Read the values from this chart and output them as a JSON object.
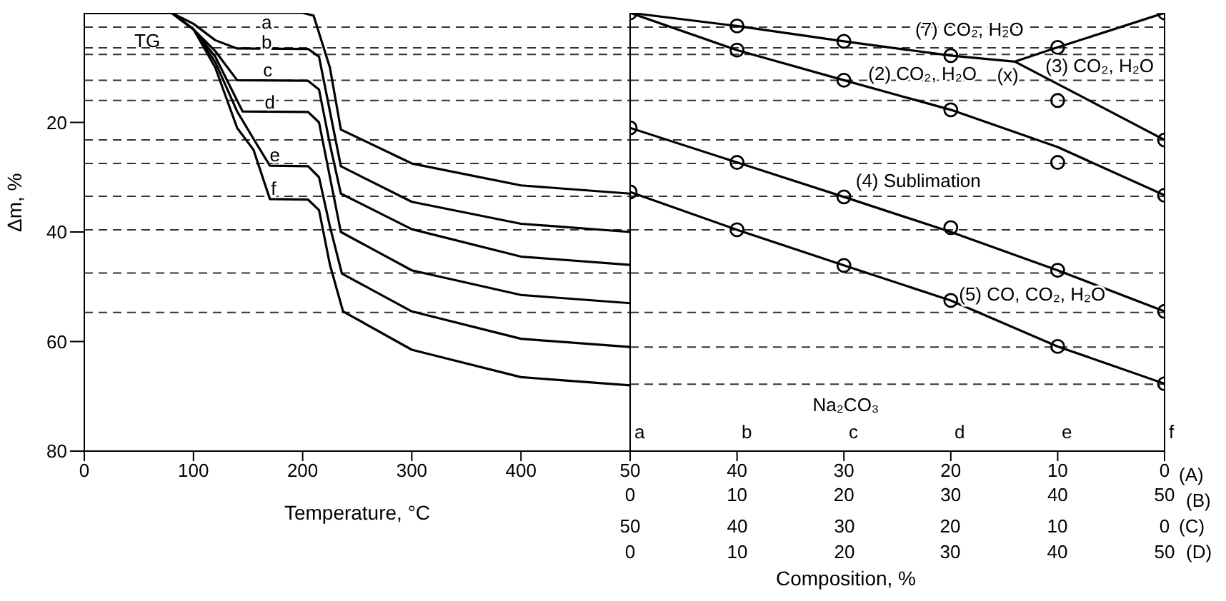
{
  "chart_data": [
    {
      "type": "line",
      "title": "TG",
      "xlabel": "Temperature, °C",
      "ylabel": "Δm, %",
      "xlim": [
        0,
        500
      ],
      "xticks": [
        0,
        100,
        200,
        300,
        400
      ],
      "ylim": [
        80,
        0
      ],
      "yticks": [
        20,
        40,
        60,
        80
      ],
      "grid": false,
      "marker": "none",
      "line_style": "solid",
      "series": [
        {
          "color": "#000000",
          "x": [
            0,
            80,
            200,
            210,
            225,
            235,
            300,
            400,
            500
          ],
          "values": [
            0,
            0,
            0,
            0.5,
            10,
            21.3,
            27.5,
            31.5,
            33
          ]
        },
        {
          "color": "#000000",
          "x": [
            0,
            80,
            100,
            120,
            140,
            205,
            215,
            225,
            235,
            300,
            400,
            500
          ],
          "values": [
            0,
            0,
            2,
            5,
            6.5,
            6.6,
            8,
            18,
            28,
            34.5,
            38.5,
            40
          ]
        },
        {
          "color": "#000000",
          "x": [
            0,
            80,
            100,
            120,
            140,
            205,
            215,
            225,
            235,
            300,
            400,
            500
          ],
          "values": [
            0,
            0,
            3,
            7,
            12.3,
            12.4,
            14,
            24,
            33,
            39.5,
            44.5,
            46
          ]
        },
        {
          "color": "#000000",
          "x": [
            0,
            80,
            100,
            120,
            135,
            145,
            205,
            215,
            225,
            235,
            300,
            400,
            500
          ],
          "values": [
            0,
            0,
            3,
            8,
            14,
            18,
            18.1,
            20,
            30,
            40,
            47,
            51.5,
            53
          ]
        },
        {
          "color": "#000000",
          "x": [
            0,
            80,
            100,
            120,
            140,
            155,
            170,
            205,
            215,
            225,
            236,
            300,
            400,
            500
          ],
          "values": [
            0,
            0,
            3,
            9,
            18,
            23,
            27.9,
            28,
            30,
            39,
            47.6,
            54.5,
            59.5,
            61
          ]
        },
        {
          "color": "#000000",
          "x": [
            0,
            80,
            100,
            120,
            140,
            155,
            170,
            205,
            215,
            225,
            237,
            300,
            400,
            500
          ],
          "values": [
            0,
            0,
            3,
            10,
            21,
            25,
            34,
            34.1,
            36,
            46,
            54.5,
            61.5,
            66.5,
            68
          ]
        }
      ],
      "ref_lines": [
        {
          "axis": "y",
          "value": 2.6,
          "color": "#333333",
          "line_style": "dashed"
        },
        {
          "axis": "y",
          "value": 6.4,
          "color": "#333333",
          "line_style": "dashed"
        },
        {
          "axis": "y",
          "value": 7.6,
          "color": "#333333",
          "line_style": "dashed"
        },
        {
          "axis": "y",
          "value": 12.3,
          "color": "#333333",
          "line_style": "dashed"
        },
        {
          "axis": "y",
          "value": 16,
          "color": "#333333",
          "line_style": "dashed"
        },
        {
          "axis": "y",
          "value": 23.2,
          "color": "#333333",
          "line_style": "dashed"
        },
        {
          "axis": "y",
          "value": 27.5,
          "color": "#333333",
          "line_style": "dashed"
        },
        {
          "axis": "y",
          "value": 33.5,
          "color": "#333333",
          "line_style": "dashed"
        },
        {
          "axis": "y",
          "value": 39.6,
          "color": "#333333",
          "line_style": "dashed"
        },
        {
          "axis": "y",
          "value": 47.5,
          "color": "#333333",
          "line_style": "dashed"
        },
        {
          "axis": "y",
          "value": 54.7,
          "color": "#333333",
          "line_style": "dashed"
        }
      ],
      "annotations": [
        {
          "text": "a",
          "x": 167,
          "y": 0
        },
        {
          "text": "b",
          "x": 167,
          "y": 6.55
        },
        {
          "text": "c",
          "x": 168,
          "y": 12.35
        },
        {
          "text": "d",
          "x": 170,
          "y": 18
        },
        {
          "text": "e",
          "x": 172,
          "y": 27.9
        },
        {
          "text": "f",
          "x": 172,
          "y": 34
        }
      ]
    },
    {
      "type": "line",
      "xlabel": "Composition, %",
      "xlim": [
        50,
        0
      ],
      "xticks": [
        50,
        40,
        30,
        20,
        10,
        0
      ],
      "x2lim": [
        0,
        50
      ],
      "x2ticks": [
        0,
        10,
        20,
        30,
        40,
        50
      ],
      "ylim": [
        80,
        0
      ],
      "tick_labels": "x",
      "grid": false,
      "marker": "none",
      "line_style": "solid",
      "series": [
        {
          "color": "#000000",
          "x": [
            50,
            40,
            30,
            20,
            14
          ],
          "values": [
            0,
            2.4,
            5.2,
            7.8,
            8.9
          ]
        },
        {
          "color": "#000000",
          "x": [
            14,
            10,
            0
          ],
          "values": [
            8.9,
            6.3,
            0
          ]
        },
        {
          "color": "#000000",
          "x": [
            14,
            0
          ],
          "values": [
            8.9,
            23.2
          ]
        },
        {
          "color": "#000000",
          "x": [
            50,
            40,
            30,
            20,
            10,
            0
          ],
          "values": [
            0,
            6.8,
            12.3,
            17.7,
            24.5,
            33.3
          ]
        },
        {
          "color": "#000000",
          "x": [
            50,
            40,
            30,
            20,
            10,
            0
          ],
          "values": [
            21,
            27.3,
            33.6,
            40,
            47,
            54.5
          ]
        },
        {
          "color": "#000000",
          "x": [
            50,
            40,
            30,
            20,
            10,
            0
          ],
          "values": [
            32.7,
            39.6,
            46.1,
            52.5,
            60.9,
            67.7
          ]
        },
        {
          "type": "scatter",
          "marker": "circle",
          "color": "#000000",
          "x": [
            50,
            40,
            30,
            20,
            10,
            0,
            40,
            30,
            20,
            10,
            10,
            0,
            0,
            50,
            40,
            30,
            20,
            10,
            0,
            50,
            40,
            30,
            20,
            10,
            0
          ],
          "values": [
            0,
            2.4,
            5.2,
            7.8,
            6.3,
            0,
            6.8,
            12.3,
            17.7,
            16,
            27.3,
            23.2,
            33.3,
            21,
            27.3,
            33.6,
            39.2,
            47,
            54.5,
            32.7,
            39.6,
            46.1,
            52.5,
            60.9,
            67.7
          ]
        }
      ],
      "ref_lines": [
        {
          "axis": "y",
          "value": 2.6,
          "color": "#333333",
          "line_style": "dashed"
        },
        {
          "axis": "y",
          "value": 6.4,
          "color": "#333333",
          "line_style": "dashed"
        },
        {
          "axis": "y",
          "value": 7.6,
          "color": "#333333",
          "line_style": "dashed"
        },
        {
          "axis": "y",
          "value": 12.3,
          "color": "#333333",
          "line_style": "dashed"
        },
        {
          "axis": "y",
          "value": 16,
          "color": "#333333",
          "line_style": "dashed"
        },
        {
          "axis": "y",
          "value": 23.2,
          "color": "#333333",
          "line_style": "dashed"
        },
        {
          "axis": "y",
          "value": 27.5,
          "color": "#333333",
          "line_style": "dashed"
        },
        {
          "axis": "y",
          "value": 33.5,
          "color": "#333333",
          "line_style": "dashed"
        },
        {
          "axis": "y",
          "value": 39.6,
          "color": "#333333",
          "line_style": "dashed"
        },
        {
          "axis": "y",
          "value": 47.5,
          "color": "#333333",
          "line_style": "dashed"
        },
        {
          "axis": "y",
          "value": 54.7,
          "color": "#333333",
          "line_style": "dashed"
        },
        {
          "axis": "y",
          "value": 61,
          "color": "#333333",
          "line_style": "dashed"
        },
        {
          "axis": "y",
          "value": 67.8,
          "color": "#333333",
          "line_style": "dashed"
        }
      ],
      "annotations": [
        {
          "text": "(7) CO₂, H₂O",
          "x": 20,
          "y": 7.8
        },
        {
          "text": "(2) CO₂, H₂O",
          "x": 30,
          "y": 12.3
        },
        {
          "text": "(x)",
          "x": 14,
          "y": 8.9
        },
        {
          "text": "(3) CO₂, H₂O",
          "x": 5,
          "y": 18.1
        },
        {
          "text": "(4) Sublimation",
          "x": 30,
          "y": 33.6
        },
        {
          "text": "(5) CO, CO₂, H₂O",
          "x": 20,
          "y": 52.5
        },
        "Na₂CO₃",
        "a",
        "b",
        "c",
        "d",
        "e",
        "f",
        "(A)",
        "(B)",
        "50",
        "40",
        "30",
        "20",
        "10",
        "0",
        "(C)",
        "0",
        "10",
        "20",
        "30",
        "40",
        "50",
        "(D)"
      ]
    }
  ]
}
